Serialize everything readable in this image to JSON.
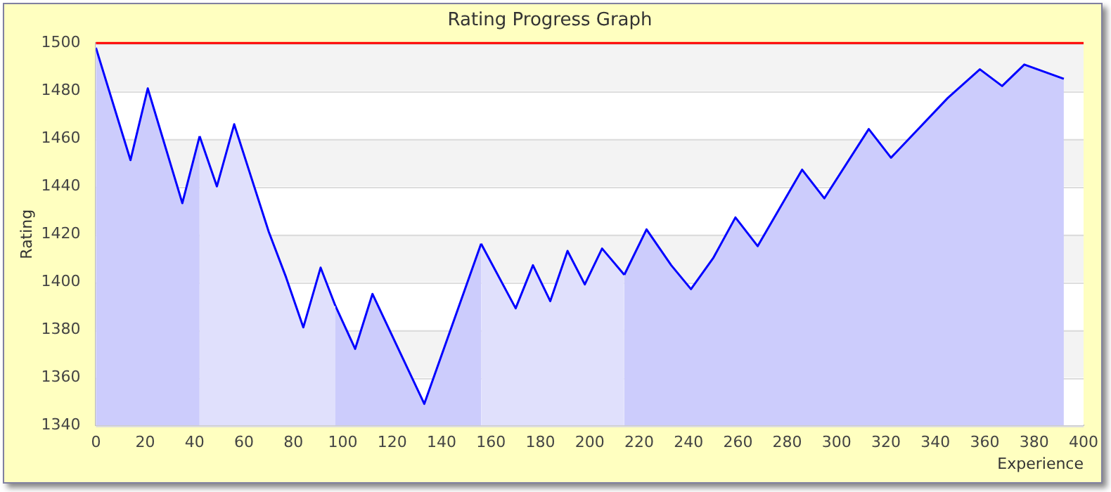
{
  "chart_data": {
    "type": "area",
    "title": "Rating Progress Graph",
    "xlabel": "Experience",
    "ylabel": "Rating",
    "xlim": [
      0,
      400
    ],
    "xticks": [
      0,
      20,
      40,
      60,
      80,
      100,
      120,
      140,
      160,
      180,
      200,
      220,
      240,
      260,
      280,
      300,
      320,
      340,
      360,
      380,
      400
    ],
    "ylim": [
      1340,
      1500
    ],
    "yticks": [
      1340,
      1360,
      1380,
      1400,
      1420,
      1440,
      1460,
      1480,
      1500
    ],
    "grid": "y",
    "legend": false,
    "marker": "none",
    "line_style": "solid",
    "ref_lines": [
      {
        "axis": "y",
        "value": 1500,
        "color": "#ff0000"
      }
    ],
    "series": [
      {
        "color": "#ccccfc",
        "x": [
          0,
          14,
          21,
          35,
          42
        ],
        "values": [
          1498,
          1451,
          1481,
          1433,
          1461
        ]
      },
      {
        "color": "#e0e0fc",
        "x": [
          42,
          49,
          56,
          70,
          77,
          84,
          91,
          97
        ],
        "values": [
          1461,
          1440,
          1466,
          1421,
          1402,
          1381,
          1406,
          1390
        ]
      },
      {
        "color": "#ccccfc",
        "x": [
          97,
          105,
          112,
          133,
          156
        ],
        "values": [
          1390,
          1372,
          1395,
          1349,
          1416
        ]
      },
      {
        "color": "#e0e0fc",
        "x": [
          156,
          170,
          177,
          184,
          191,
          198,
          205,
          214
        ],
        "values": [
          1416,
          1389,
          1407,
          1392,
          1413,
          1399,
          1414,
          1403
        ]
      },
      {
        "color": "#ccccfc",
        "x": [
          214,
          223,
          233,
          241,
          250,
          259,
          268,
          286,
          295,
          313,
          322,
          345,
          358,
          367,
          376,
          392
        ],
        "values": [
          1403,
          1422,
          1407,
          1397,
          1410,
          1427,
          1415,
          1447,
          1435,
          1464,
          1452,
          1477,
          1489,
          1482,
          1491,
          1485
        ]
      }
    ]
  }
}
